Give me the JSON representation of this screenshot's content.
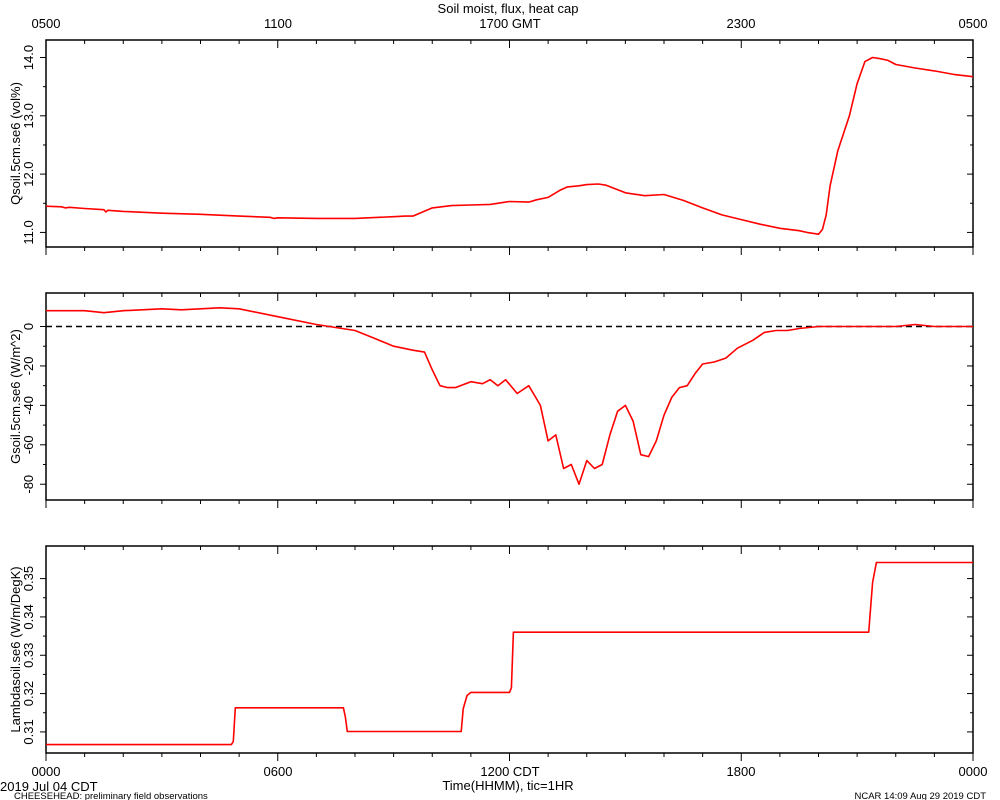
{
  "title": "Soil moist, flux, heat cap",
  "top_axis_labels": [
    "0500",
    "1100",
    "1700 GMT",
    "2300",
    "0500"
  ],
  "bottom_axis_labels": [
    "0000",
    "0600",
    "1200 CDT",
    "1800",
    "0000"
  ],
  "xlabel": "Time(HHMM), tic=1HR",
  "date_label": "2019 Jul 04 CDT",
  "footer_left": "CHEESEHEAD: preliminary field observations",
  "footer_right": "NCAR 14:09 Aug 29 2019 CDT",
  "colors": {
    "series": "#ff0000",
    "axes": "#000000",
    "zero_line": "#000000"
  },
  "chart_data": [
    {
      "type": "line",
      "ylabel": "Qsoil.5cm.se6 (vol%)",
      "ylim": [
        10.75,
        14.3
      ],
      "yticks": [
        11.0,
        12.0,
        13.0,
        14.0
      ],
      "ytick_labels": [
        "11.0",
        "12.0",
        "13.0",
        "14.0"
      ],
      "xlim": [
        0,
        24
      ],
      "series": [
        {
          "x": [
            0,
            0.4,
            0.5,
            0.6,
            1.0,
            1.5,
            1.55,
            1.6,
            2,
            3,
            4,
            5,
            5.8,
            5.9,
            6,
            7,
            7.5,
            8,
            9,
            9.3,
            9.5,
            10,
            10.5,
            11,
            11.5,
            12,
            12.5,
            12.7,
            13,
            13.3,
            13.5,
            13.8,
            14,
            14.3,
            14.5,
            15,
            15.5,
            16,
            16.5,
            17,
            17.5,
            18,
            18.5,
            19,
            19.5,
            19.7,
            20.0,
            20.1,
            20.2,
            20.3,
            20.5,
            20.8,
            21.0,
            21.2,
            21.4,
            21.6,
            21.8,
            22,
            22.5,
            23,
            23.5,
            24
          ],
          "y": [
            11.45,
            11.44,
            11.42,
            11.43,
            11.41,
            11.39,
            11.35,
            11.38,
            11.36,
            11.33,
            11.31,
            11.28,
            11.26,
            11.24,
            11.25,
            11.24,
            11.24,
            11.24,
            11.27,
            11.28,
            11.28,
            11.42,
            11.46,
            11.47,
            11.48,
            11.53,
            11.52,
            11.56,
            11.6,
            11.72,
            11.78,
            11.8,
            11.82,
            11.83,
            11.81,
            11.68,
            11.63,
            11.65,
            11.55,
            11.42,
            11.3,
            11.22,
            11.14,
            11.07,
            11.03,
            11.0,
            10.97,
            11.05,
            11.3,
            11.8,
            12.4,
            13.0,
            13.55,
            13.93,
            14.0,
            13.98,
            13.95,
            13.88,
            13.82,
            13.77,
            13.71,
            13.67
          ]
        }
      ]
    },
    {
      "type": "line",
      "ylabel": "Gsoil.5cm.se6 (W/m^2)",
      "ylim": [
        -88,
        17
      ],
      "yticks": [
        0,
        -20,
        -40,
        -60,
        -80
      ],
      "ytick_labels": [
        "0",
        "-20",
        "-40",
        "-60",
        "-80"
      ],
      "zero_line": true,
      "xlim": [
        0,
        24
      ],
      "series": [
        {
          "x": [
            0,
            1,
            1.5,
            2,
            3,
            3.5,
            4,
            4.5,
            5,
            6,
            7,
            8,
            8.5,
            9,
            9.5,
            9.8,
            10,
            10.2,
            10.4,
            10.6,
            11,
            11.3,
            11.5,
            11.7,
            11.9,
            12.2,
            12.5,
            12.8,
            13,
            13.2,
            13.4,
            13.6,
            13.8,
            14.0,
            14.2,
            14.4,
            14.6,
            14.8,
            15.0,
            15.2,
            15.4,
            15.6,
            15.8,
            16,
            16.2,
            16.4,
            16.6,
            16.8,
            17,
            17.3,
            17.6,
            17.9,
            18.3,
            18.6,
            18.9,
            19.2,
            19.5,
            20,
            20.5,
            21,
            22,
            22.5,
            23,
            23.5,
            24
          ],
          "y": [
            8,
            8,
            7,
            8,
            9,
            8.5,
            9,
            9.5,
            9,
            5,
            1,
            -2,
            -6,
            -10,
            -12,
            -13,
            -22,
            -30,
            -31,
            -31,
            -28,
            -29,
            -27,
            -30,
            -27,
            -34,
            -30,
            -40,
            -58,
            -55,
            -72,
            -70,
            -80,
            -68,
            -72,
            -70,
            -55,
            -43,
            -40,
            -48,
            -65,
            -66,
            -58,
            -45,
            -36,
            -31,
            -30,
            -24,
            -19,
            -18,
            -16,
            -11,
            -7,
            -3,
            -2,
            -2,
            -1,
            0,
            0,
            0,
            0,
            1,
            0,
            0,
            0
          ]
        }
      ]
    },
    {
      "type": "line",
      "ylabel": "Lambdasoil.se6 (W/m/DegK)",
      "ylim": [
        0.3045,
        0.3585
      ],
      "yticks": [
        0.31,
        0.32,
        0.33,
        0.34,
        0.35
      ],
      "ytick_labels": [
        "0.31",
        "0.32",
        "0.33",
        "0.34",
        "0.35"
      ],
      "xlim": [
        0,
        24
      ],
      "series": [
        {
          "x": [
            0,
            4.8,
            4.85,
            4.9,
            5.0,
            7.7,
            7.75,
            7.8,
            10.7,
            10.75,
            10.8,
            10.9,
            11.0,
            12.0,
            12.05,
            12.1,
            12.3,
            12.35,
            21.3,
            21.4,
            21.5,
            24
          ],
          "y": [
            0.3067,
            0.3067,
            0.3075,
            0.3163,
            0.3163,
            0.3163,
            0.314,
            0.3101,
            0.3101,
            0.3101,
            0.316,
            0.3195,
            0.3203,
            0.3203,
            0.3215,
            0.336,
            0.336,
            0.336,
            0.336,
            0.349,
            0.3542,
            0.3542
          ]
        }
      ]
    }
  ]
}
